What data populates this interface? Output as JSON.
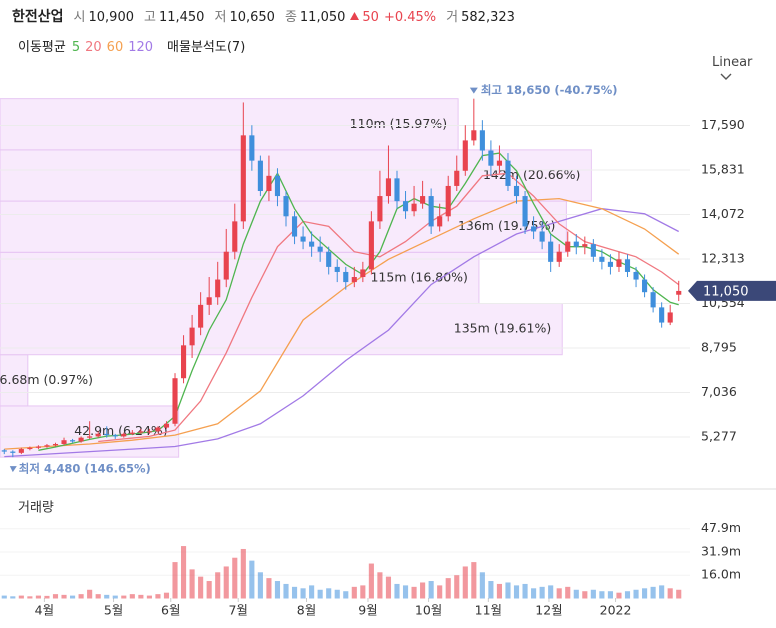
{
  "header": {
    "name": "한전산업",
    "open_label": "시",
    "open": "10,900",
    "high_label": "고",
    "high": "11,450",
    "low_label": "저",
    "low": "10,650",
    "close_label": "종",
    "close": "11,050",
    "change": "50",
    "change_pct": "+0.45%",
    "volume_label": "거",
    "volume": "582,323"
  },
  "indicators": {
    "ma_label": "이동평균",
    "profile_label": "매물분석도(7)"
  },
  "scale_button": "Linear",
  "chart_data": [
    {
      "type": "candlestick",
      "xlim": [
        -0.5,
        79.5
      ],
      "xticks": [
        {
          "value": 4.7,
          "label": "4월"
        },
        {
          "value": 12.8,
          "label": "5월"
        },
        {
          "value": 19.5,
          "label": "6월"
        },
        {
          "value": 27.4,
          "label": "7월"
        },
        {
          "value": 35.4,
          "label": "8월"
        },
        {
          "value": 42.6,
          "label": "9월"
        },
        {
          "value": 49.7,
          "label": "10월"
        },
        {
          "value": 56.7,
          "label": "11월"
        },
        {
          "value": 63.8,
          "label": "12월"
        },
        {
          "value": 71.6,
          "label": "2022"
        }
      ],
      "ylim": [
        3300,
        19190
      ],
      "yticks": [
        {
          "value": 5277,
          "label": "5,277"
        },
        {
          "value": 7036,
          "label": "7,036"
        },
        {
          "value": 8795,
          "label": "8,795"
        },
        {
          "value": 10554,
          "label": "10,554"
        },
        {
          "value": 12313,
          "label": "12,313"
        },
        {
          "value": 14072,
          "label": "14,072"
        },
        {
          "value": 15831,
          "label": "15,831"
        },
        {
          "value": 17590,
          "label": "17,590"
        }
      ],
      "grid": true,
      "up_color": "#e8434e",
      "down_color": "#3f8fdc",
      "open": [
        4750,
        4700,
        4650,
        4800,
        4850,
        4900,
        4950,
        5000,
        5150,
        5100,
        5250,
        5300,
        5400,
        5350,
        5300,
        5400,
        5450,
        5500,
        5500,
        5650,
        5800,
        7600,
        8900,
        9600,
        10500,
        10800,
        11500,
        12600,
        13800,
        17200,
        16200,
        15000,
        15600,
        14800,
        14000,
        13200,
        13000,
        12800,
        12600,
        12000,
        11800,
        11400,
        11600,
        11900,
        13800,
        14800,
        15500,
        14600,
        14200,
        14500,
        14800,
        13600,
        14000,
        15200,
        15800,
        17000,
        17400,
        16600,
        16000,
        16200,
        15200,
        14800,
        13600,
        13400,
        13000,
        12200,
        12600,
        13000,
        12800,
        12900,
        12400,
        12200,
        12000,
        12300,
        11800,
        11500,
        11000,
        10400,
        9800,
        10900
      ],
      "high": [
        4800,
        4750,
        4850,
        4900,
        4950,
        5000,
        5050,
        5250,
        5200,
        5300,
        5900,
        5500,
        5700,
        5400,
        5450,
        5550,
        5600,
        5600,
        5700,
        5900,
        7800,
        9300,
        10100,
        11000,
        11600,
        12200,
        13500,
        14500,
        18500,
        17600,
        16400,
        16400,
        15900,
        15000,
        14200,
        13600,
        13400,
        13200,
        12800,
        12300,
        12000,
        12000,
        12200,
        14200,
        15800,
        16800,
        15800,
        15000,
        15200,
        15400,
        15100,
        14500,
        15600,
        16400,
        17600,
        18650,
        17800,
        17000,
        16800,
        16500,
        15600,
        15000,
        14000,
        13800,
        13300,
        12900,
        13400,
        13300,
        13200,
        13100,
        12700,
        12500,
        12600,
        12500,
        12000,
        11700,
        11200,
        10600,
        10500,
        11450
      ],
      "low": [
        4600,
        4480,
        4600,
        4750,
        4800,
        4850,
        4900,
        4950,
        5050,
        5050,
        5200,
        5250,
        5250,
        5200,
        5250,
        5350,
        5400,
        5400,
        5450,
        5600,
        5700,
        7400,
        8400,
        9300,
        10100,
        10500,
        11200,
        12300,
        13500,
        15800,
        14800,
        14600,
        14400,
        13600,
        12900,
        12700,
        12400,
        12200,
        11700,
        11400,
        11100,
        11200,
        11400,
        11700,
        13500,
        14500,
        14300,
        13900,
        14000,
        14300,
        13300,
        13400,
        13800,
        15000,
        15600,
        16800,
        16200,
        15600,
        15700,
        15000,
        14500,
        13300,
        13100,
        12700,
        11800,
        12000,
        12400,
        12500,
        12500,
        12200,
        11900,
        11700,
        11800,
        11600,
        11200,
        10800,
        10200,
        9600,
        9700,
        10650
      ],
      "close": [
        4700,
        4650,
        4800,
        4850,
        4900,
        4950,
        5000,
        5150,
        5100,
        5250,
        5300,
        5400,
        5350,
        5300,
        5400,
        5450,
        5500,
        5500,
        5650,
        5800,
        7600,
        8900,
        9600,
        10500,
        10800,
        11500,
        12600,
        13800,
        17200,
        16200,
        15000,
        15600,
        14800,
        14000,
        13200,
        13000,
        12800,
        12600,
        12000,
        11800,
        11400,
        11600,
        11900,
        13800,
        14800,
        15500,
        14600,
        14200,
        14500,
        14800,
        13600,
        14000,
        15200,
        15800,
        17000,
        17400,
        16600,
        16000,
        16200,
        15200,
        14800,
        13600,
        13400,
        13000,
        12200,
        12600,
        13000,
        12800,
        12900,
        12400,
        12200,
        12000,
        12300,
        11800,
        11500,
        11000,
        10400,
        9800,
        10200,
        11050
      ],
      "series": [
        {
          "name": "5",
          "color": "#4fb54f",
          "x": [
            4,
            6,
            8,
            10,
            12,
            14,
            16,
            18,
            20,
            22,
            24,
            26,
            28,
            30,
            32,
            34,
            36,
            38,
            40,
            42,
            44,
            46,
            48,
            50,
            52,
            54,
            56,
            58,
            60,
            62,
            64,
            66,
            68,
            70,
            72,
            74,
            76,
            78,
            79
          ],
          "values": [
            4750,
            4880,
            5030,
            5180,
            5310,
            5360,
            5430,
            5530,
            6100,
            7900,
            9500,
            10700,
            12900,
            14600,
            15700,
            14300,
            13300,
            12700,
            12100,
            11700,
            12600,
            14300,
            14700,
            14400,
            14300,
            15300,
            16400,
            16500,
            15800,
            14500,
            13300,
            12800,
            12800,
            12600,
            12200,
            11900,
            11100,
            10600,
            10500
          ]
        },
        {
          "name": "20",
          "color": "#f07880",
          "x": [
            11,
            14,
            17,
            20,
            23,
            26,
            29,
            32,
            35,
            38,
            41,
            44,
            47,
            50,
            53,
            56,
            59,
            62,
            65,
            68,
            71,
            74,
            77,
            79
          ],
          "values": [
            5100,
            5200,
            5300,
            5550,
            6700,
            8600,
            10800,
            12800,
            13800,
            13600,
            12600,
            12400,
            13000,
            13800,
            14400,
            15600,
            15700,
            14800,
            13700,
            13000,
            12700,
            12400,
            11800,
            11300
          ]
        },
        {
          "name": "60",
          "color": "#f5a050",
          "x": [
            0,
            5,
            10,
            15,
            20,
            25,
            30,
            35,
            40,
            45,
            50,
            55,
            60,
            65,
            70,
            75,
            79
          ],
          "values": [
            4800,
            4900,
            5000,
            5150,
            5350,
            5800,
            7100,
            9900,
            11200,
            12300,
            13100,
            13900,
            14600,
            14700,
            14300,
            13500,
            12500
          ]
        },
        {
          "name": "120",
          "color": "#a27ae6",
          "x": [
            0,
            5,
            10,
            15,
            20,
            25,
            30,
            35,
            40,
            45,
            50,
            55,
            60,
            65,
            70,
            75,
            79
          ],
          "values": [
            4500,
            4600,
            4700,
            4800,
            4900,
            5200,
            5800,
            6900,
            8300,
            9500,
            11300,
            12400,
            13300,
            13800,
            14300,
            14100,
            13400
          ]
        }
      ],
      "volume_profile": {
        "bins": [
          4480,
          6504,
          8529,
          10553,
          12577,
          14601,
          16626,
          18650
        ],
        "values": [
          42.9,
          6.68,
          135,
          115,
          136,
          142,
          110
        ],
        "value_labels": [
          "42.9m (6.24%)",
          "6.68m (0.97%)",
          "135m (19.61%)",
          "115m (16.80%)",
          "136m (19.75%)",
          "142m (20.66%)",
          "110m (15.97%)"
        ],
        "color": "#f5e3fb",
        "xlim": [
          0,
          164
        ]
      },
      "max_label": "최고 18,650 (-40.75%)",
      "min_label": "최저 4,480 (146.65%)"
    },
    {
      "type": "bar",
      "title": "거래량",
      "values": [
        2,
        1.5,
        2,
        1.5,
        2,
        1.8,
        3,
        2.5,
        2,
        3,
        6,
        3,
        2.5,
        2,
        2,
        3,
        2.5,
        2,
        3,
        4,
        25,
        36,
        20,
        15,
        12,
        18,
        22,
        28,
        34,
        26,
        18,
        14,
        12,
        10,
        8,
        7,
        9,
        6,
        7,
        6,
        5,
        8,
        9,
        24,
        18,
        15,
        10,
        9,
        8,
        11,
        12,
        9,
        14,
        16,
        22,
        25,
        18,
        12,
        10,
        11,
        9,
        10,
        7,
        8,
        9,
        7,
        8,
        6,
        5,
        6,
        5,
        5,
        4,
        5,
        6,
        7,
        8,
        9,
        7,
        6
      ],
      "ylim": [
        0,
        69
      ],
      "yticks": [
        {
          "value": 16,
          "label": "16.0m"
        },
        {
          "value": 31.9,
          "label": "31.9m"
        },
        {
          "value": 47.9,
          "label": "47.9m"
        }
      ]
    }
  ]
}
